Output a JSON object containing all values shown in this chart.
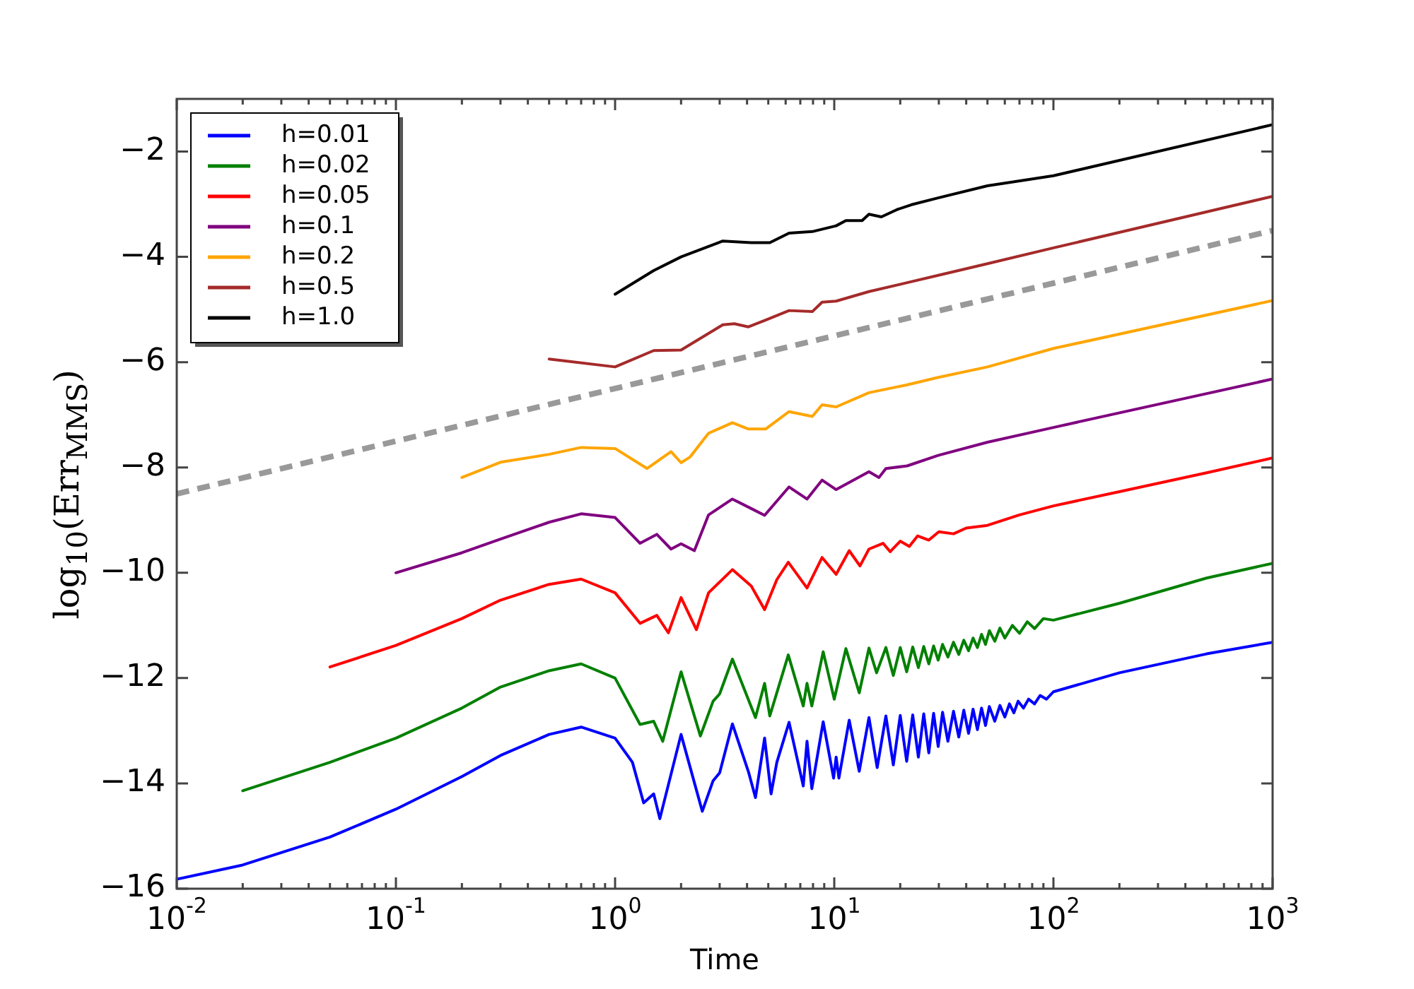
{
  "chart_data": {
    "type": "line",
    "xlabel": "Time",
    "ylabel": "log$_{10}$(Err$_{MMS}$)",
    "log": "x",
    "legend": "top left",
    "marker": "none",
    "xlim": [
      0.01,
      1000
    ],
    "ylim": [
      -16,
      -1
    ],
    "xticks": [
      {
        "value": 0.01,
        "label": "10$^{-2}$"
      },
      {
        "value": 0.02,
        "label": null
      },
      {
        "value": 0.03,
        "label": null
      },
      {
        "value": 0.04,
        "label": null
      },
      {
        "value": 0.05,
        "label": null
      },
      {
        "value": 0.06,
        "label": null
      },
      {
        "value": 0.07,
        "label": null
      },
      {
        "value": 0.08,
        "label": null
      },
      {
        "value": 0.09,
        "label": null
      },
      {
        "value": 0.1,
        "label": "10$^{-1}$"
      },
      {
        "value": 0.2,
        "label": null
      },
      {
        "value": 0.3,
        "label": null
      },
      {
        "value": 0.4,
        "label": null
      },
      {
        "value": 0.5,
        "label": null
      },
      {
        "value": 0.6,
        "label": null
      },
      {
        "value": 0.7,
        "label": null
      },
      {
        "value": 0.8,
        "label": null
      },
      {
        "value": 0.9,
        "label": null
      },
      {
        "value": 1,
        "label": "10$^{0}$"
      },
      {
        "value": 2,
        "label": null
      },
      {
        "value": 3,
        "label": null
      },
      {
        "value": 4,
        "label": null
      },
      {
        "value": 5,
        "label": null
      },
      {
        "value": 6,
        "label": null
      },
      {
        "value": 7,
        "label": null
      },
      {
        "value": 8,
        "label": null
      },
      {
        "value": 9,
        "label": null
      },
      {
        "value": 10,
        "label": "10$^{1}$"
      },
      {
        "value": 20,
        "label": null
      },
      {
        "value": 30,
        "label": null
      },
      {
        "value": 40,
        "label": null
      },
      {
        "value": 50,
        "label": null
      },
      {
        "value": 60,
        "label": null
      },
      {
        "value": 70,
        "label": null
      },
      {
        "value": 80,
        "label": null
      },
      {
        "value": 90,
        "label": null
      },
      {
        "value": 100,
        "label": "10$^{2}$"
      },
      {
        "value": 200,
        "label": null
      },
      {
        "value": 300,
        "label": null
      },
      {
        "value": 400,
        "label": null
      },
      {
        "value": 500,
        "label": null
      },
      {
        "value": 600,
        "label": null
      },
      {
        "value": 700,
        "label": null
      },
      {
        "value": 800,
        "label": null
      },
      {
        "value": 900,
        "label": null
      },
      {
        "value": 1000,
        "label": "10$^{3}$"
      }
    ],
    "yticks": [
      {
        "value": -16,
        "label": "−16"
      },
      {
        "value": -14,
        "label": "−14"
      },
      {
        "value": -12,
        "label": "−12"
      },
      {
        "value": -10,
        "label": "−10"
      },
      {
        "value": -8,
        "label": "−8"
      },
      {
        "value": -6,
        "label": "−6"
      },
      {
        "value": -4,
        "label": "−4"
      },
      {
        "value": -2,
        "label": "−2"
      }
    ],
    "series": [
      {
        "name": "h=0.01",
        "color": "#0000ff",
        "x": [
          0.01,
          0.02,
          0.05,
          0.1,
          0.2,
          0.3,
          0.5,
          0.7,
          1,
          1.2,
          1.35,
          1.5,
          1.6,
          2,
          2.5,
          2.8,
          3,
          3.43,
          4.06,
          4.37,
          4.81,
          5.15,
          5.47,
          6.22,
          7.22,
          7.51,
          7.9,
          8.9,
          9.93,
          10.2,
          10.5,
          11.7,
          13,
          14.4,
          15.7,
          17.2,
          18.6,
          20,
          21.4,
          22.8,
          24.2,
          25.6,
          27,
          28.4,
          29.8,
          31.2,
          33,
          35,
          37,
          39,
          41,
          43,
          45,
          47,
          49,
          51,
          54,
          57,
          60,
          63,
          66,
          69,
          73,
          77,
          82,
          87,
          93,
          100,
          200,
          500,
          1000
        ],
        "values": [
          -15.82,
          -15.55,
          -15.02,
          -14.49,
          -13.87,
          -13.47,
          -13.07,
          -12.93,
          -13.14,
          -13.6,
          -14.37,
          -14.2,
          -14.67,
          -13.07,
          -14.53,
          -13.95,
          -13.8,
          -12.87,
          -13.78,
          -14.27,
          -13.14,
          -14.2,
          -13.6,
          -12.84,
          -14.05,
          -13.2,
          -14.1,
          -12.83,
          -13.9,
          -13.5,
          -13.9,
          -12.8,
          -13.77,
          -12.75,
          -13.7,
          -12.72,
          -13.65,
          -12.71,
          -13.58,
          -12.7,
          -13.5,
          -12.68,
          -13.42,
          -12.67,
          -13.3,
          -12.65,
          -13.2,
          -12.63,
          -13.12,
          -12.61,
          -13.05,
          -12.59,
          -12.98,
          -12.57,
          -12.9,
          -12.54,
          -12.82,
          -12.52,
          -12.74,
          -12.49,
          -12.66,
          -12.44,
          -12.57,
          -12.4,
          -12.49,
          -12.33,
          -12.4,
          -12.26,
          -11.9,
          -11.54,
          -11.32
        ]
      },
      {
        "name": "h=0.02",
        "color": "#008000",
        "x": [
          0.02,
          0.05,
          0.1,
          0.2,
          0.3,
          0.5,
          0.7,
          1,
          1.3,
          1.5,
          1.65,
          2,
          2.45,
          2.8,
          3,
          3.43,
          4.37,
          4.81,
          5.08,
          6.17,
          7.22,
          7.51,
          7.9,
          8.9,
          10,
          11.3,
          13,
          14.4,
          15.6,
          17.2,
          18.6,
          20,
          21.4,
          22.8,
          24.2,
          25.6,
          27,
          28.4,
          29.8,
          31.2,
          33,
          35,
          37,
          39,
          41,
          43,
          45,
          47,
          49,
          51,
          54,
          57,
          60,
          65,
          70,
          76,
          82,
          90,
          100,
          200,
          500,
          1000
        ],
        "values": [
          -14.14,
          -13.6,
          -13.14,
          -12.57,
          -12.17,
          -11.86,
          -11.73,
          -12.0,
          -12.88,
          -12.82,
          -13.2,
          -11.88,
          -13.1,
          -12.44,
          -12.3,
          -11.64,
          -12.75,
          -12.1,
          -12.72,
          -11.56,
          -12.53,
          -12.1,
          -12.53,
          -11.5,
          -12.4,
          -11.44,
          -12.28,
          -11.43,
          -11.9,
          -11.42,
          -11.95,
          -11.42,
          -11.88,
          -11.41,
          -11.8,
          -11.4,
          -11.73,
          -11.39,
          -11.66,
          -11.36,
          -11.6,
          -11.32,
          -11.55,
          -11.28,
          -11.48,
          -11.24,
          -11.42,
          -11.17,
          -11.36,
          -11.1,
          -11.3,
          -11.05,
          -11.24,
          -11.0,
          -11.15,
          -10.93,
          -11.06,
          -10.87,
          -10.9,
          -10.58,
          -10.1,
          -9.82
        ]
      },
      {
        "name": "h=0.05",
        "color": "#ff0000",
        "x": [
          0.05,
          0.1,
          0.2,
          0.3,
          0.5,
          0.7,
          1,
          1.3,
          1.55,
          1.75,
          2,
          2.35,
          2.67,
          3.43,
          4.18,
          4.81,
          5.47,
          6.17,
          7.51,
          8.8,
          10.2,
          11.7,
          13.1,
          14.4,
          16.7,
          18,
          20,
          22,
          24,
          27,
          30,
          35,
          40,
          50,
          70,
          100,
          200,
          500,
          1000
        ],
        "values": [
          -11.79,
          -11.38,
          -10.87,
          -10.52,
          -10.22,
          -10.12,
          -10.38,
          -10.96,
          -10.81,
          -11.14,
          -10.47,
          -11.08,
          -10.38,
          -9.94,
          -10.25,
          -10.7,
          -10.13,
          -9.8,
          -10.29,
          -9.71,
          -10.03,
          -9.58,
          -9.87,
          -9.55,
          -9.44,
          -9.6,
          -9.4,
          -9.5,
          -9.3,
          -9.38,
          -9.22,
          -9.26,
          -9.15,
          -9.1,
          -8.9,
          -8.73,
          -8.46,
          -8.1,
          -7.82
        ]
      },
      {
        "name": "h=0.1",
        "color": "#800080",
        "x": [
          0.1,
          0.2,
          0.3,
          0.5,
          0.7,
          1,
          1.3,
          1.55,
          1.8,
          2,
          2.3,
          2.67,
          3.43,
          4.18,
          4.81,
          6.22,
          7.51,
          8.8,
          10.2,
          14.4,
          16,
          17.2,
          21.5,
          29.8,
          50,
          100,
          1000
        ],
        "values": [
          -10.0,
          -9.62,
          -9.36,
          -9.04,
          -8.88,
          -8.95,
          -9.44,
          -9.27,
          -9.55,
          -9.45,
          -9.58,
          -8.9,
          -8.6,
          -8.78,
          -8.91,
          -8.37,
          -8.6,
          -8.24,
          -8.42,
          -8.08,
          -8.19,
          -8.02,
          -7.97,
          -7.77,
          -7.52,
          -7.24,
          -6.32
        ]
      },
      {
        "name": "h=0.2",
        "color": "#ffa500",
        "x": [
          0.2,
          0.3,
          0.5,
          0.7,
          1,
          1.4,
          1.8,
          2,
          2.2,
          2.67,
          3.43,
          4.06,
          4.86,
          6.22,
          7.94,
          8.8,
          10.2,
          14.4,
          21.5,
          29.8,
          50,
          100,
          1000
        ],
        "values": [
          -8.19,
          -7.9,
          -7.75,
          -7.62,
          -7.64,
          -8.02,
          -7.7,
          -7.91,
          -7.8,
          -7.35,
          -7.15,
          -7.27,
          -7.27,
          -6.94,
          -7.03,
          -6.81,
          -6.85,
          -6.58,
          -6.43,
          -6.29,
          -6.09,
          -5.74,
          -4.83
        ]
      },
      {
        "name": "h=0.5",
        "color": "#a52a2a",
        "x": [
          0.5,
          1,
          1.5,
          2,
          3.1,
          3.5,
          4.06,
          4.86,
          6.22,
          7.94,
          8.8,
          10.2,
          14.4,
          21.5,
          29.8,
          50,
          100,
          1000
        ],
        "values": [
          -5.94,
          -6.09,
          -5.78,
          -5.77,
          -5.29,
          -5.27,
          -5.33,
          -5.2,
          -5.02,
          -5.04,
          -4.86,
          -4.84,
          -4.66,
          -4.49,
          -4.35,
          -4.13,
          -3.83,
          -2.85
        ]
      },
      {
        "name": "h=1.0",
        "color": "#000000",
        "x": [
          1,
          1.5,
          2,
          3.1,
          4.18,
          5.08,
          6.22,
          7.94,
          10.2,
          11.3,
          13.4,
          14.4,
          16.4,
          19.4,
          22.5,
          29.8,
          50,
          100,
          1000
        ],
        "values": [
          -4.71,
          -4.26,
          -4.0,
          -3.7,
          -3.73,
          -3.73,
          -3.55,
          -3.52,
          -3.41,
          -3.31,
          -3.31,
          -3.19,
          -3.24,
          -3.1,
          -3.01,
          -2.88,
          -2.65,
          -2.46,
          -1.49
        ]
      },
      {
        "color": "#999999",
        "line_style": "dashed",
        "x": [
          0.01,
          1000
        ],
        "values": [
          -8.5,
          -3.5
        ]
      }
    ]
  }
}
